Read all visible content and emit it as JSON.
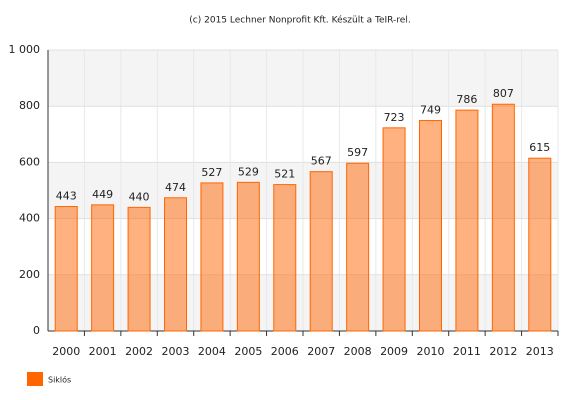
{
  "chart_data": {
    "type": "bar",
    "title": "(c) 2015 Lechner Nonprofit Kft. Készült a TeIR-rel.",
    "categories": [
      "2000",
      "2001",
      "2002",
      "2003",
      "2004",
      "2005",
      "2006",
      "2007",
      "2008",
      "2009",
      "2010",
      "2011",
      "2012",
      "2013"
    ],
    "series": [
      {
        "name": "Siklós",
        "color": "#ff6600",
        "values": [
          443,
          449,
          440,
          474,
          527,
          529,
          521,
          567,
          597,
          723,
          749,
          786,
          807,
          615
        ]
      }
    ],
    "ylim": [
      0,
      1000
    ],
    "yticks": [
      0,
      200,
      400,
      600,
      800,
      {
        "value": 1000,
        "label": "1 000"
      }
    ],
    "grid": true,
    "legend": "bottom-left"
  }
}
